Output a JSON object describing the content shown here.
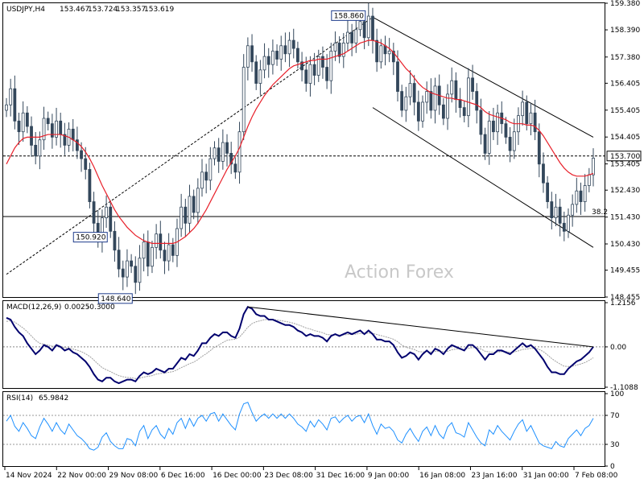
{
  "chart_data": [
    {
      "type": "candlestick",
      "title": "USDJPY,H4",
      "ohlc_values": [
        "153.467",
        "153.724",
        "153.357",
        "153.619"
      ],
      "watermark": "Action Forex",
      "ylim": [
        148.455,
        159.38
      ],
      "price_ticks": [
        "159.380",
        "158.390",
        "157.380",
        "156.405",
        "155.405",
        "154.405",
        "153.405",
        "152.430",
        "151.430",
        "150.430",
        "149.455",
        "148.455"
      ],
      "current_price": "153.700",
      "fib_label": "38.2",
      "fib_level": 151.45,
      "annotations": [
        {
          "label": "158.860",
          "value": 158.86
        },
        {
          "label": "148.640",
          "value": 148.64
        },
        {
          "label": "150.920",
          "value": 150.92
        }
      ],
      "x_labels": [
        "14 Nov 2024",
        "22 Nov 00:00",
        "29 Nov 08:00",
        "6 Dec 16:00",
        "16 Dec 00:00",
        "23 Dec 08:00",
        "31 Dec 16:00",
        "9 Jan 00:00",
        "16 Jan 08:00",
        "23 Jan 16:00",
        "31 Jan 00:00",
        "7 Feb 08:00"
      ],
      "close_series": [
        155.6,
        156.2,
        155.0,
        154.6,
        155.3,
        154.8,
        154.1,
        153.7,
        154.3,
        155.1,
        154.9,
        154.4,
        155.0,
        154.5,
        154.1,
        154.7,
        154.3,
        153.9,
        153.6,
        153.2,
        152.0,
        151.2,
        150.6,
        151.4,
        151.8,
        150.9,
        150.2,
        149.5,
        149.2,
        149.8,
        149.6,
        149.0,
        149.9,
        150.5,
        149.6,
        150.3,
        150.8,
        150.2,
        149.8,
        150.4,
        150.0,
        151.0,
        151.8,
        151.2,
        152.2,
        151.6,
        152.5,
        153.1,
        152.8,
        153.6,
        154.0,
        153.5,
        154.2,
        153.8,
        153.4,
        153.1,
        154.6,
        157.0,
        157.8,
        157.2,
        156.4,
        156.9,
        157.4,
        157.1,
        157.6,
        157.3,
        157.8,
        157.5,
        158.0,
        157.7,
        157.2,
        156.9,
        156.4,
        157.1,
        156.7,
        157.4,
        157.0,
        156.5,
        157.6,
        157.9,
        157.4,
        157.9,
        158.3,
        157.9,
        158.4,
        158.7,
        158.1,
        158.9,
        158.0,
        157.2,
        157.8,
        157.5,
        157.6,
        157.2,
        156.1,
        155.4,
        155.9,
        156.4,
        155.7,
        155.0,
        155.7,
        156.1,
        155.4,
        156.3,
        155.6,
        155.1,
        156.0,
        156.5,
        155.8,
        155.5,
        155.2,
        156.6,
        156.1,
        155.4,
        154.5,
        153.8,
        155.0,
        154.6,
        155.3,
        154.9,
        154.4,
        153.9,
        154.6,
        155.2,
        155.7,
        154.9,
        155.3,
        154.6,
        153.4,
        152.7,
        152.0,
        151.4,
        151.8,
        151.2,
        150.9,
        151.5,
        151.9,
        152.4,
        152.0,
        152.6,
        153.0,
        153.62
      ],
      "ma_series": [
        153.4,
        153.7,
        154.0,
        154.2,
        154.35,
        154.4,
        154.4,
        154.4,
        154.4,
        154.45,
        154.5,
        154.5,
        154.5,
        154.5,
        154.45,
        154.4,
        154.3,
        154.2,
        154.05,
        153.85,
        153.6,
        153.3,
        152.95,
        152.6,
        152.3,
        152.0,
        151.7,
        151.45,
        151.25,
        151.05,
        150.9,
        150.75,
        150.65,
        150.55,
        150.5,
        150.45,
        150.45,
        150.45,
        150.45,
        150.45,
        150.45,
        150.5,
        150.6,
        150.7,
        150.85,
        151.0,
        151.2,
        151.45,
        151.7,
        152.0,
        152.3,
        152.6,
        152.9,
        153.2,
        153.45,
        153.7,
        154.0,
        154.4,
        154.8,
        155.15,
        155.45,
        155.7,
        155.95,
        156.15,
        156.35,
        156.5,
        156.65,
        156.8,
        156.95,
        157.05,
        157.1,
        157.15,
        157.2,
        157.25,
        157.25,
        157.3,
        157.3,
        157.3,
        157.35,
        157.4,
        157.45,
        157.5,
        157.6,
        157.7,
        157.8,
        157.9,
        157.95,
        158.0,
        158.0,
        157.95,
        157.9,
        157.8,
        157.7,
        157.55,
        157.35,
        157.15,
        156.95,
        156.8,
        156.6,
        156.4,
        156.25,
        156.15,
        156.05,
        156.0,
        155.95,
        155.9,
        155.85,
        155.85,
        155.8,
        155.8,
        155.75,
        155.7,
        155.65,
        155.6,
        155.5,
        155.35,
        155.25,
        155.2,
        155.15,
        155.1,
        155.05,
        154.95,
        154.9,
        154.9,
        154.9,
        154.85,
        154.85,
        154.8,
        154.65,
        154.45,
        154.2,
        153.95,
        153.7,
        153.45,
        153.25,
        153.1,
        153.0,
        152.95,
        152.95,
        152.95,
        153.0,
        153.05
      ],
      "trend_lines": [
        {
          "from": [
            0,
            149.3
          ],
          "to": [
            88,
            158.86
          ],
          "style": "dashed"
        },
        {
          "from": [
            88,
            158.86
          ],
          "to": [
            141,
            154.4
          ],
          "style": "solid"
        },
        {
          "from": [
            88,
            155.5
          ],
          "to": [
            141,
            150.3
          ],
          "style": "solid"
        }
      ]
    },
    {
      "type": "line",
      "title": "MACD(12,26,9)",
      "values_text": [
        "0.0025",
        "-0.3000"
      ],
      "ylim": [
        -1.1088,
        1.2156
      ],
      "ticks": [
        "1.2156",
        "0.00",
        "-1.1088"
      ],
      "macd_series": [
        0.8,
        0.75,
        0.55,
        0.4,
        0.3,
        0.1,
        -0.05,
        -0.2,
        -0.1,
        0.05,
        0.0,
        -0.1,
        0.05,
        0.0,
        -0.1,
        -0.05,
        -0.15,
        -0.2,
        -0.3,
        -0.4,
        -0.55,
        -0.75,
        -0.9,
        -0.95,
        -0.85,
        -0.85,
        -0.95,
        -1.0,
        -0.95,
        -0.9,
        -0.9,
        -0.95,
        -0.8,
        -0.7,
        -0.75,
        -0.7,
        -0.6,
        -0.65,
        -0.7,
        -0.6,
        -0.6,
        -0.45,
        -0.3,
        -0.35,
        -0.2,
        -0.25,
        -0.1,
        0.1,
        0.1,
        0.25,
        0.35,
        0.3,
        0.4,
        0.4,
        0.3,
        0.25,
        0.5,
        0.9,
        1.1,
        1.05,
        0.9,
        0.85,
        0.85,
        0.75,
        0.75,
        0.7,
        0.65,
        0.6,
        0.6,
        0.55,
        0.45,
        0.4,
        0.3,
        0.35,
        0.3,
        0.3,
        0.25,
        0.15,
        0.3,
        0.35,
        0.3,
        0.35,
        0.4,
        0.35,
        0.4,
        0.45,
        0.35,
        0.45,
        0.35,
        0.2,
        0.2,
        0.15,
        0.15,
        0.05,
        -0.15,
        -0.3,
        -0.25,
        -0.15,
        -0.2,
        -0.35,
        -0.2,
        -0.1,
        -0.2,
        -0.05,
        -0.1,
        -0.2,
        -0.05,
        0.05,
        0.0,
        -0.05,
        -0.1,
        0.05,
        0.05,
        -0.05,
        -0.2,
        -0.35,
        -0.2,
        -0.2,
        -0.1,
        -0.1,
        -0.15,
        -0.2,
        -0.1,
        0.0,
        0.1,
        0.0,
        0.05,
        -0.05,
        -0.2,
        -0.35,
        -0.55,
        -0.7,
        -0.7,
        -0.75,
        -0.75,
        -0.6,
        -0.5,
        -0.4,
        -0.35,
        -0.25,
        -0.15,
        0.0025
      ],
      "signal_series": [
        0.7,
        0.72,
        0.68,
        0.6,
        0.52,
        0.42,
        0.3,
        0.18,
        0.1,
        0.07,
        0.05,
        0.02,
        0.02,
        0.01,
        -0.02,
        -0.03,
        -0.06,
        -0.09,
        -0.13,
        -0.19,
        -0.26,
        -0.36,
        -0.47,
        -0.57,
        -0.63,
        -0.68,
        -0.74,
        -0.79,
        -0.82,
        -0.84,
        -0.85,
        -0.87,
        -0.86,
        -0.83,
        -0.81,
        -0.79,
        -0.75,
        -0.73,
        -0.72,
        -0.7,
        -0.68,
        -0.63,
        -0.57,
        -0.52,
        -0.46,
        -0.42,
        -0.35,
        -0.26,
        -0.19,
        -0.1,
        -0.01,
        0.05,
        0.12,
        0.18,
        0.2,
        0.21,
        0.27,
        0.4,
        0.54,
        0.64,
        0.69,
        0.72,
        0.75,
        0.75,
        0.75,
        0.74,
        0.72,
        0.7,
        0.68,
        0.65,
        0.61,
        0.57,
        0.52,
        0.49,
        0.45,
        0.42,
        0.39,
        0.34,
        0.33,
        0.33,
        0.33,
        0.33,
        0.34,
        0.34,
        0.35,
        0.37,
        0.36,
        0.38,
        0.37,
        0.34,
        0.31,
        0.28,
        0.25,
        0.21,
        0.14,
        0.05,
        -0.01,
        -0.04,
        -0.07,
        -0.13,
        -0.14,
        -0.13,
        -0.14,
        -0.12,
        -0.12,
        -0.13,
        -0.12,
        -0.08,
        -0.06,
        -0.06,
        -0.07,
        -0.04,
        -0.02,
        -0.02,
        -0.06,
        -0.12,
        -0.14,
        -0.15,
        -0.14,
        -0.13,
        -0.13,
        -0.15,
        -0.14,
        -0.11,
        -0.07,
        -0.06,
        -0.04,
        -0.04,
        -0.07,
        -0.13,
        -0.22,
        -0.32,
        -0.4,
        -0.47,
        -0.53,
        -0.54,
        -0.53,
        -0.5,
        -0.47,
        -0.43,
        -0.37,
        -0.3
      ],
      "trend_line": {
        "from": [
          58,
          1.1
        ],
        "to": [
          141,
          0.0
        ]
      }
    },
    {
      "type": "line",
      "title": "RSI(14)",
      "value_text": "65.9842",
      "ylim": [
        0,
        100
      ],
      "ticks": [
        "100",
        "70",
        "30",
        "0"
      ],
      "levels": [
        70,
        30
      ],
      "rsi_series": [
        62,
        70,
        55,
        48,
        60,
        52,
        42,
        38,
        54,
        66,
        58,
        48,
        60,
        50,
        44,
        58,
        50,
        42,
        38,
        32,
        24,
        22,
        26,
        40,
        46,
        34,
        28,
        24,
        24,
        38,
        36,
        28,
        48,
        56,
        38,
        50,
        56,
        44,
        38,
        52,
        44,
        60,
        66,
        52,
        66,
        55,
        66,
        70,
        62,
        72,
        74,
        62,
        72,
        64,
        56,
        50,
        72,
        86,
        88,
        74,
        62,
        68,
        72,
        66,
        72,
        66,
        72,
        66,
        72,
        66,
        58,
        54,
        48,
        62,
        54,
        64,
        58,
        50,
        66,
        68,
        60,
        66,
        70,
        62,
        68,
        70,
        60,
        72,
        56,
        44,
        58,
        52,
        54,
        48,
        36,
        32,
        44,
        52,
        42,
        34,
        48,
        54,
        42,
        56,
        44,
        38,
        54,
        60,
        46,
        44,
        40,
        60,
        50,
        40,
        32,
        28,
        50,
        44,
        56,
        48,
        42,
        36,
        48,
        58,
        64,
        48,
        56,
        44,
        32,
        28,
        26,
        24,
        34,
        28,
        26,
        38,
        44,
        50,
        42,
        52,
        56,
        65.98
      ]
    }
  ]
}
